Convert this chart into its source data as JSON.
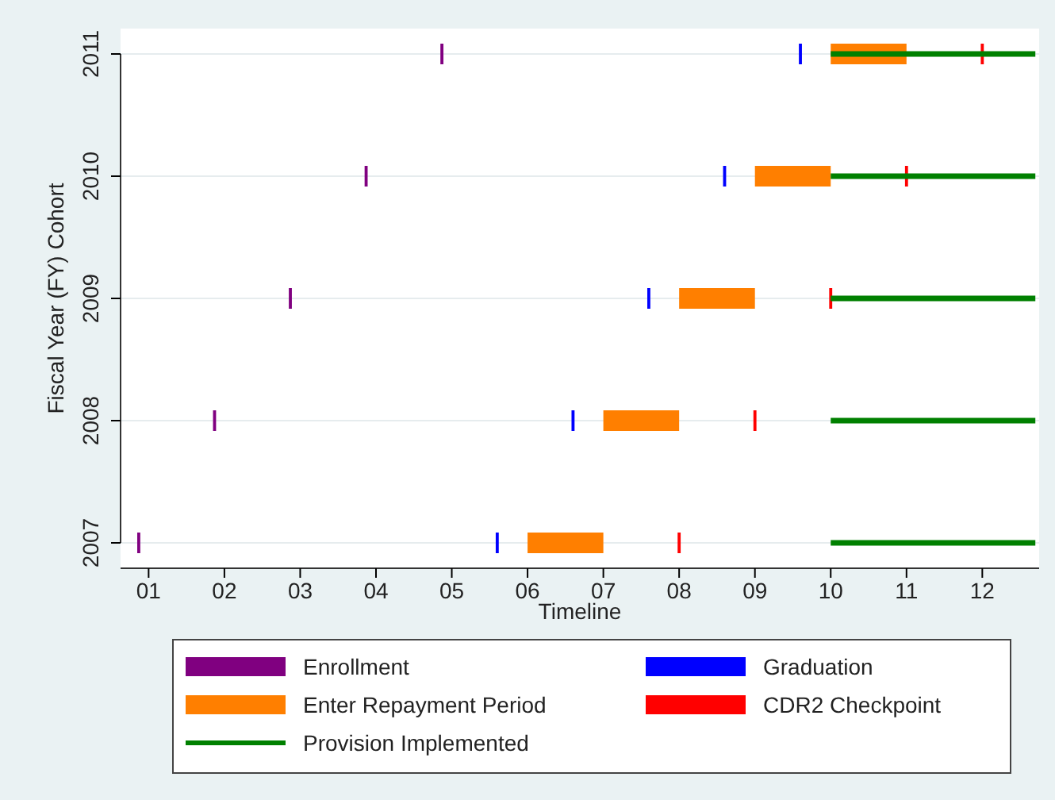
{
  "chart_data": {
    "type": "bar",
    "orientation": "horizontal",
    "xlabel": "Timeline",
    "ylabel": "Fiscal Year (FY) Cohort",
    "categories": [
      "2011",
      "2010",
      "2009",
      "2008",
      "2007"
    ],
    "series": [
      {
        "name": "Enrollment",
        "color": "#800080",
        "base": [
          4.85,
          3.85,
          2.85,
          1.85,
          0.85
        ],
        "values": [
          0.04,
          0.04,
          0.04,
          0.04,
          0.04
        ]
      },
      {
        "name": "Graduation",
        "color": "#0000ff",
        "base": [
          9.58,
          8.58,
          7.58,
          6.58,
          5.58
        ],
        "values": [
          0.04,
          0.04,
          0.04,
          0.04,
          0.04
        ]
      },
      {
        "name": "Enter Repayment Period",
        "color": "#ff7f00",
        "base": [
          10,
          9,
          8,
          7,
          6
        ],
        "values": [
          1,
          1,
          1,
          1,
          1
        ]
      },
      {
        "name": "CDR2 Checkpoint",
        "color": "#ff0000",
        "base": [
          11.98,
          10.98,
          9.98,
          8.98,
          7.98
        ],
        "values": [
          0.04,
          0.04,
          0.04,
          0.04,
          0.04
        ]
      },
      {
        "name": "Provision Implemented",
        "color": "#008000",
        "line_style": "solid",
        "base": [
          10,
          10,
          10,
          10,
          10
        ],
        "values": [
          2.7,
          2.7,
          2.7,
          2.7,
          2.7
        ]
      }
    ],
    "xlim": [
      0.63,
      12.75
    ],
    "xticks": [
      {
        "value": 1,
        "label": "01"
      },
      {
        "value": 2,
        "label": "02"
      },
      {
        "value": 3,
        "label": "03"
      },
      {
        "value": 4,
        "label": "04"
      },
      {
        "value": 5,
        "label": "05"
      },
      {
        "value": 6,
        "label": "06"
      },
      {
        "value": 7,
        "label": "07"
      },
      {
        "value": 8,
        "label": "08"
      },
      {
        "value": 9,
        "label": "09"
      },
      {
        "value": 10,
        "label": "10"
      },
      {
        "value": 11,
        "label": "11"
      },
      {
        "value": 12,
        "label": "12"
      }
    ],
    "grid": "y",
    "legend": "bottom"
  }
}
